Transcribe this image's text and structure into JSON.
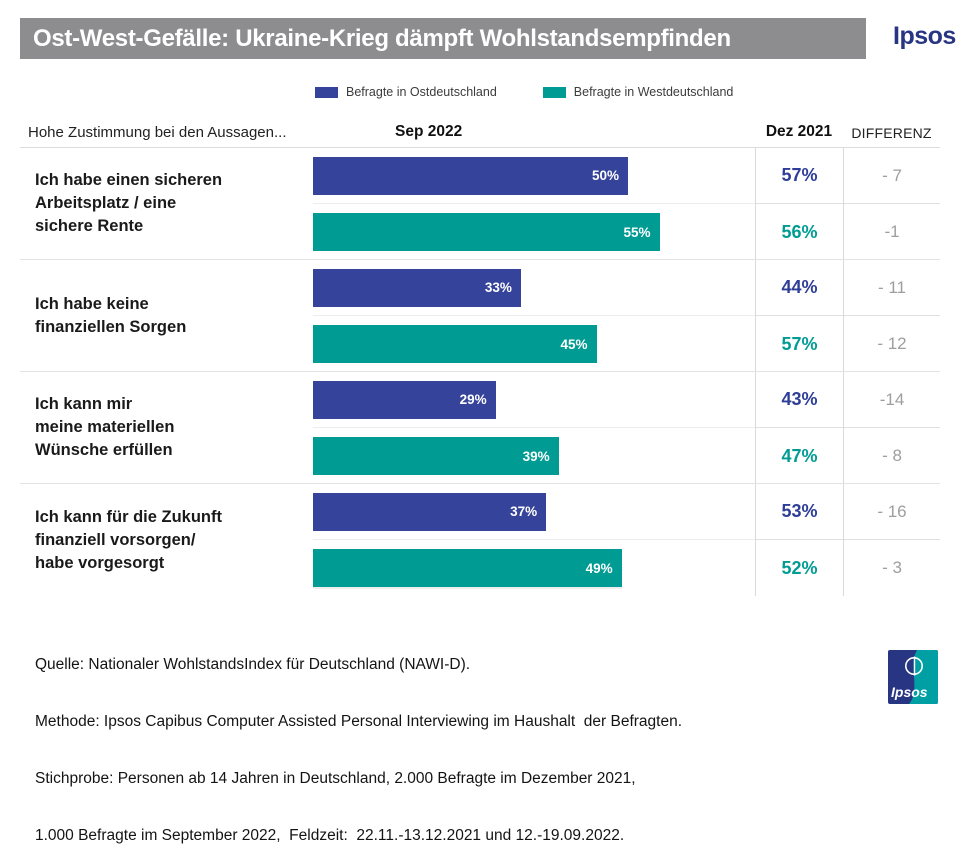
{
  "header": {
    "title": "Ost-West-Gefälle: Ukraine-Krieg dämpft Wohlstandsempfinden",
    "brand": "Ipsos"
  },
  "legend": {
    "east": "Befragte in Ostdeutschland",
    "west": "Befragte in Westdeutschland"
  },
  "columns": {
    "left": "Hohe Zustimmung  bei den Aussagen...",
    "sep2022": "Sep 2022",
    "dez2021": "Dez 2021",
    "differenz": "DIFFERENZ"
  },
  "colors": {
    "east_bar": "#35439B",
    "west_bar": "#009C94",
    "title_bar_bg": "#8D8D8F",
    "brand_blue": "#283583",
    "brand_teal": "#009FA3",
    "diff_text": "#9E9E9E"
  },
  "rows": [
    {
      "statement": "Ich habe einen sicheren\nArbeitsplatz / eine\nsichere Rente",
      "east": {
        "value": 50,
        "label": "50%",
        "prev": "57%",
        "diff": "- 7"
      },
      "west": {
        "value": 55,
        "label": "55%",
        "prev": "56%",
        "diff": "-1"
      }
    },
    {
      "statement": "Ich habe keine\nfinanziellen Sorgen",
      "east": {
        "value": 33,
        "label": "33%",
        "prev": "44%",
        "diff": "- 11"
      },
      "west": {
        "value": 45,
        "label": "45%",
        "prev": "57%",
        "diff": "- 12"
      }
    },
    {
      "statement": "Ich kann mir\nmeine materiellen\nWünsche erfüllen",
      "east": {
        "value": 29,
        "label": "29%",
        "prev": "43%",
        "diff": "-14"
      },
      "west": {
        "value": 39,
        "label": "39%",
        "prev": "47%",
        "diff": "- 8"
      }
    },
    {
      "statement": "Ich kann für die Zukunft\nfinanziell vorsorgen/\nhabe vorgesorgt",
      "east": {
        "value": 37,
        "label": "37%",
        "prev": "53%",
        "diff": "- 16"
      },
      "west": {
        "value": 49,
        "label": "49%",
        "prev": "52%",
        "diff": "- 3"
      }
    }
  ],
  "chart_data": {
    "type": "bar",
    "orientation": "horizontal",
    "unit": "percent",
    "title": "Ost-West-Gefälle: Ukraine-Krieg dämpft Wohlstandsempfinden",
    "categories": [
      "Ich habe einen sicheren Arbeitsplatz / eine sichere Rente",
      "Ich habe keine finanziellen Sorgen",
      "Ich kann mir meine materiellen Wünsche erfüllen",
      "Ich kann für die Zukunft finanziell vorsorgen/ habe vorgesorgt"
    ],
    "series": [
      {
        "name": "Befragte in Ostdeutschland",
        "period": "Sep 2022",
        "color": "#35439B",
        "values": [
          50,
          33,
          29,
          37
        ]
      },
      {
        "name": "Befragte in Westdeutschland",
        "period": "Sep 2022",
        "color": "#009C94",
        "values": [
          55,
          45,
          39,
          49
        ]
      },
      {
        "name": "Befragte in Ostdeutschland",
        "period": "Dez 2021",
        "color": "#2E3E98",
        "values": [
          57,
          44,
          43,
          53
        ]
      },
      {
        "name": "Befragte in Westdeutschland",
        "period": "Dez 2021",
        "color": "#009C94",
        "values": [
          56,
          57,
          47,
          52
        ]
      }
    ],
    "differenz": {
      "ost": [
        -7,
        -11,
        -14,
        -16
      ],
      "west": [
        -1,
        -12,
        -8,
        -3
      ]
    },
    "xlim": [
      0,
      100
    ],
    "value_labels": true,
    "grid": "row-separators",
    "legend_position": "top"
  },
  "footer": {
    "lines": [
      "Quelle: Nationaler WohlstandsIndex für Deutschland (NAWI-D).",
      "Methode: Ipsos Capibus Computer Assisted Personal Interviewing im Haushalt  der Befragten.",
      "Stichprobe: Personen ab 14 Jahren in Deutschland, 2.000 Befragte im Dezember 2021,",
      "1.000 Befragte im September 2022,  Feldzeit:  22.11.-13.12.2021 und 12.-19.09.2022."
    ],
    "logo": "Ipsos"
  }
}
